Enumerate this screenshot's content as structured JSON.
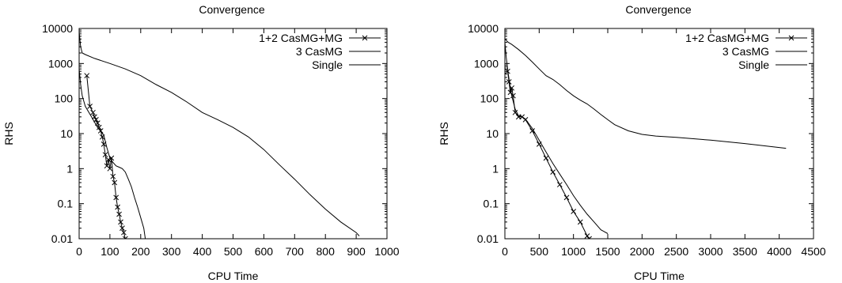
{
  "chart_data": [
    {
      "type": "line",
      "title": "Convergence",
      "xlabel": "CPU Time",
      "ylabel": "RHS",
      "xlim": [
        0,
        1000
      ],
      "ylim": [
        0.01,
        10000
      ],
      "yscale": "log",
      "x_ticks": [
        "0",
        "100",
        "200",
        "300",
        "400",
        "500",
        "600",
        "700",
        "800",
        "900",
        "1000"
      ],
      "y_ticks": [
        "0.01",
        "0.1",
        "1",
        "10",
        "100",
        "1000",
        "10000"
      ],
      "grid": false,
      "legend_position": "top-right",
      "series": [
        {
          "name": "1+2 CasMG+MG",
          "marker": "x",
          "x": [
            25,
            35,
            45,
            50,
            55,
            60,
            65,
            70,
            75,
            80,
            85,
            90,
            95,
            100,
            105,
            110,
            115,
            120,
            125,
            130,
            135,
            140,
            145,
            150
          ],
          "y": [
            450,
            60,
            40,
            30,
            25,
            20,
            15,
            12,
            8,
            5,
            2.5,
            1.2,
            1.8,
            1.0,
            2.0,
            0.6,
            0.4,
            0.15,
            0.08,
            0.05,
            0.03,
            0.02,
            0.015,
            0.01
          ]
        },
        {
          "name": "3 CasMG",
          "x": [
            0,
            5,
            10,
            20,
            40,
            60,
            80,
            90,
            100,
            110,
            120,
            130,
            140,
            150,
            160,
            170,
            180,
            190,
            200,
            210,
            215
          ],
          "y": [
            700,
            250,
            120,
            60,
            30,
            15,
            9,
            4,
            2,
            1.5,
            1.2,
            1.1,
            1.0,
            0.8,
            0.5,
            0.3,
            0.15,
            0.08,
            0.04,
            0.02,
            0.01
          ]
        },
        {
          "name": "Single",
          "x": [
            0,
            5,
            10,
            20,
            50,
            100,
            150,
            200,
            250,
            300,
            350,
            400,
            450,
            500,
            550,
            600,
            650,
            700,
            750,
            800,
            850,
            900,
            910
          ],
          "y": [
            8000,
            3000,
            2000,
            1800,
            1400,
            1000,
            700,
            450,
            250,
            150,
            80,
            40,
            25,
            15,
            8,
            3.5,
            1.3,
            0.5,
            0.18,
            0.07,
            0.03,
            0.015,
            0.012
          ]
        }
      ]
    },
    {
      "type": "line",
      "title": "Convergence",
      "xlabel": "CPU Time",
      "ylabel": "RHS",
      "xlim": [
        0,
        4500
      ],
      "ylim": [
        0.01,
        10000
      ],
      "yscale": "log",
      "x_ticks": [
        "0",
        "500",
        "1000",
        "1500",
        "2000",
        "2500",
        "3000",
        "3500",
        "4000",
        "4500"
      ],
      "y_ticks": [
        "0.01",
        "0.1",
        "1",
        "10",
        "100",
        "1000",
        "10000"
      ],
      "grid": false,
      "legend_position": "top-right",
      "series": [
        {
          "name": "1+2 CasMG+MG",
          "marker": "x",
          "x": [
            40,
            60,
            80,
            100,
            120,
            150,
            200,
            250,
            300,
            400,
            500,
            600,
            700,
            800,
            900,
            1000,
            1100,
            1200,
            1230
          ],
          "y": [
            600,
            300,
            150,
            200,
            120,
            40,
            30,
            30,
            25,
            12,
            5,
            2,
            0.8,
            0.35,
            0.15,
            0.06,
            0.03,
            0.012,
            0.01
          ]
        },
        {
          "name": "3 CasMG",
          "x": [
            0,
            20,
            50,
            80,
            100,
            150,
            200,
            250,
            300,
            400,
            500,
            600,
            700,
            800,
            900,
            1000,
            1100,
            1200,
            1300,
            1400,
            1500
          ],
          "y": [
            4000,
            1500,
            500,
            200,
            120,
            50,
            32,
            30,
            26,
            14,
            6.5,
            3,
            1.4,
            0.7,
            0.35,
            0.17,
            0.09,
            0.05,
            0.03,
            0.018,
            0.014
          ]
        },
        {
          "name": "Single",
          "x": [
            0,
            50,
            100,
            200,
            300,
            400,
            500,
            600,
            700,
            800,
            900,
            1000,
            1100,
            1200,
            1300,
            1400,
            1500,
            1600,
            1800,
            2000,
            2200,
            2500,
            3000,
            3500,
            4000,
            4100
          ],
          "y": [
            5000,
            4000,
            3500,
            2500,
            1700,
            1100,
            700,
            450,
            350,
            250,
            170,
            120,
            90,
            70,
            50,
            35,
            25,
            18,
            12,
            9.5,
            8.5,
            7.8,
            6.5,
            5.2,
            4.0,
            3.8
          ]
        }
      ]
    }
  ]
}
